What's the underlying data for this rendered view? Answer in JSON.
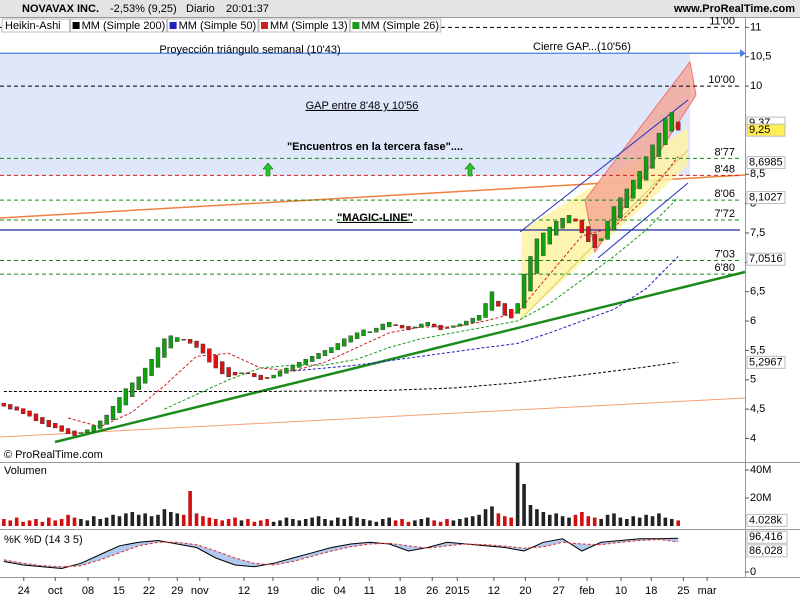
{
  "chart_data": [
    {
      "type": "candlestick",
      "title": "NOVAVAX INC.",
      "change": "-2,53% (9,25)",
      "period": "Diario",
      "time": "20:01:37",
      "source": "www.ProRealTime.com",
      "copyright": "© ProRealTime.com",
      "candles": {
        "name": "Heikin-Ashi",
        "up_color": "#10a010",
        "down_color": "#e01010",
        "open": [
          4.6,
          4.58,
          4.54,
          4.51,
          4.47,
          4.42,
          4.36,
          4.31,
          4.26,
          4.22,
          4.17,
          4.13,
          4.09,
          4.1,
          4.12,
          4.17,
          4.24,
          4.32,
          4.44,
          4.57,
          4.71,
          4.83,
          4.94,
          5.07,
          5.21,
          5.38,
          5.54,
          5.65,
          5.69,
          5.69,
          5.66,
          5.61,
          5.53,
          5.42,
          5.31,
          5.21,
          5.13,
          5.11,
          5.12,
          5.11,
          5.08,
          5.04,
          5.03,
          5.06,
          5.11,
          5.16,
          5.21,
          5.26,
          5.31,
          5.36,
          5.41,
          5.46,
          5.51,
          5.57,
          5.64,
          5.7,
          5.75,
          5.8,
          5.81,
          5.85,
          5.9,
          5.94,
          5.93,
          5.91,
          5.88,
          5.89,
          5.92,
          5.95,
          5.93,
          5.89,
          5.89,
          5.91,
          5.93,
          5.97,
          6.01,
          6.06,
          6.18,
          6.34,
          6.3,
          6.2,
          6.13,
          6.22,
          6.51,
          6.81,
          7.11,
          7.31,
          7.46,
          7.58,
          7.67,
          7.74,
          7.72,
          7.61,
          7.48,
          7.37,
          7.39,
          7.55,
          7.75,
          7.93,
          8.09,
          8.25,
          8.4,
          8.6,
          8.8,
          9.0,
          9.23,
          9.39
        ],
        "close": [
          4.55,
          4.5,
          4.48,
          4.42,
          4.38,
          4.3,
          4.25,
          4.2,
          4.18,
          4.12,
          4.08,
          4.05,
          4.1,
          4.15,
          4.22,
          4.3,
          4.4,
          4.55,
          4.7,
          4.85,
          4.95,
          5.05,
          5.2,
          5.35,
          5.55,
          5.7,
          5.75,
          5.72,
          5.68,
          5.62,
          5.55,
          5.45,
          5.3,
          5.2,
          5.1,
          5.05,
          5.08,
          5.12,
          5.1,
          5.05,
          5.0,
          5.02,
          5.08,
          5.15,
          5.2,
          5.25,
          5.3,
          5.35,
          5.4,
          5.45,
          5.5,
          5.55,
          5.62,
          5.7,
          5.75,
          5.8,
          5.85,
          5.82,
          5.88,
          5.95,
          5.98,
          5.92,
          5.88,
          5.85,
          5.9,
          5.95,
          5.98,
          5.9,
          5.85,
          5.88,
          5.92,
          5.95,
          6.0,
          6.05,
          6.1,
          6.3,
          6.5,
          6.25,
          6.1,
          6.05,
          6.3,
          6.8,
          7.1,
          7.4,
          7.5,
          7.6,
          7.7,
          7.75,
          7.8,
          7.7,
          7.5,
          7.35,
          7.25,
          7.4,
          7.7,
          7.95,
          8.1,
          8.25,
          8.4,
          8.55,
          8.8,
          9.0,
          9.2,
          9.45,
          9.55,
          9.25
        ]
      },
      "series": [
        {
          "name": "MM (Simple 200)",
          "color": "#000000",
          "x": [
            0,
            40,
            60,
            70,
            80,
            90,
            100,
            105
          ],
          "values": [
            4.8,
            4.8,
            4.82,
            4.86,
            4.95,
            5.08,
            5.22,
            5.3
          ]
        },
        {
          "name": "MM (Simple 50)",
          "color": "#2020c0",
          "x": [
            45,
            55,
            65,
            75,
            80,
            85,
            90,
            95,
            100,
            105
          ],
          "values": [
            5.15,
            5.25,
            5.4,
            5.55,
            5.62,
            5.8,
            6.0,
            6.2,
            6.55,
            7.1
          ]
        },
        {
          "name": "MM (Simple 13)",
          "color": "#d02020",
          "x": [
            10,
            15,
            20,
            25,
            30,
            35,
            40,
            45,
            50,
            55,
            60,
            65,
            70,
            75,
            80,
            85,
            90,
            95,
            100,
            105
          ],
          "values": [
            4.35,
            4.2,
            4.45,
            4.9,
            5.4,
            5.45,
            5.2,
            5.15,
            5.3,
            5.55,
            5.8,
            5.9,
            5.9,
            6.0,
            6.15,
            6.8,
            7.45,
            7.6,
            8.1,
            8.8
          ]
        },
        {
          "name": "MM (Simple 26)",
          "color": "#1a9a1a",
          "x": [
            25,
            30,
            35,
            40,
            45,
            50,
            55,
            60,
            65,
            70,
            75,
            80,
            85,
            90,
            95,
            100,
            105
          ],
          "values": [
            4.5,
            4.75,
            5.0,
            5.2,
            5.25,
            5.25,
            5.35,
            5.55,
            5.7,
            5.8,
            5.9,
            6.0,
            6.3,
            6.7,
            7.1,
            7.55,
            8.1
          ]
        }
      ],
      "levels": [
        {
          "value": 11,
          "label": "11'00",
          "color": "#000000",
          "dash": true
        },
        {
          "value": 10.56,
          "color": "#4a7ee8",
          "dash": false
        },
        {
          "value": 10,
          "label": "10'00",
          "color": "#000000",
          "dash": true
        },
        {
          "value": 8.77,
          "label": "8'77",
          "color": "#1a8a1a",
          "dash": true
        },
        {
          "value": 8.48,
          "label": "8'48",
          "color": "#d02020",
          "dash": true
        },
        {
          "value": 8.06,
          "label": "8'06",
          "color": "#1a8a1a",
          "dash": true
        },
        {
          "value": 7.72,
          "label": "7'72",
          "color": "#1a8a1a",
          "dash": true
        },
        {
          "value": 7.55,
          "color": "#1a2a9a",
          "dash": false
        },
        {
          "value": 7.03,
          "label": "7'03",
          "color": "#1a8a1a",
          "dash": true
        },
        {
          "value": 6.8,
          "label": "6'80",
          "color": "#1a8a1a",
          "dash": true
        }
      ],
      "band": {
        "low": 8.48,
        "high": 10.56,
        "color": "#dfe7fb"
      },
      "annotations": [
        "Proyección triángulo semanal (10'43)",
        "Cierre GAP...(10'56)",
        "GAP entre 8'48 y 10'56",
        "\"Encuentros en la tercera fase\"....",
        "\"MAGIC-LINE\""
      ],
      "price_labels": [
        {
          "value": 9.37,
          "label": "9,37",
          "color": "#000000",
          "bg": "#ffffff"
        },
        {
          "value": 9.25,
          "label": "9,25",
          "color": "#000000",
          "bg": "#ffee55"
        },
        {
          "value": 8.6985,
          "label": "8,6985",
          "color": "#d00000",
          "bg": "#ffffff"
        },
        {
          "value": 8.1027,
          "label": "8,1027",
          "color": "#108010",
          "bg": "#ffffff"
        },
        {
          "value": 7.0516,
          "label": "7,0516",
          "color": "#2030c0",
          "bg": "#ffffff"
        },
        {
          "value": 5.2967,
          "label": "5,2967",
          "color": "#000000",
          "bg": "#ffffff"
        }
      ],
      "xlim": [
        -0.6,
        115.4
      ],
      "xticks": [
        {
          "value": 3.1,
          "label": "24"
        },
        {
          "value": 8,
          "label": "oct"
        },
        {
          "value": 13.1,
          "label": "08"
        },
        {
          "value": 17.9,
          "label": "15"
        },
        {
          "value": 22.6,
          "label": "22"
        },
        {
          "value": 27,
          "label": "29"
        },
        {
          "value": 30.5,
          "label": "nov"
        },
        {
          "value": 37.4,
          "label": "12"
        },
        {
          "value": 41.9,
          "label": "19"
        },
        {
          "value": 48.9,
          "label": "dic"
        },
        {
          "value": 52.3,
          "label": "04"
        },
        {
          "value": 56.9,
          "label": "11"
        },
        {
          "value": 61.7,
          "label": "18"
        },
        {
          "value": 66.7,
          "label": "26"
        },
        {
          "value": 70.6,
          "label": "2015"
        },
        {
          "value": 76.3,
          "label": "12"
        },
        {
          "value": 81.2,
          "label": "20"
        },
        {
          "value": 86.4,
          "label": "27"
        },
        {
          "value": 90.8,
          "label": "feb"
        },
        {
          "value": 96.1,
          "label": "10"
        },
        {
          "value": 100.8,
          "label": "18"
        },
        {
          "value": 105.8,
          "label": "25"
        },
        {
          "value": 109.5,
          "label": "mar"
        }
      ],
      "ylim": [
        3.6,
        11.16
      ],
      "yticks": [
        4,
        {
          "value": 4.5,
          "label": "4,5"
        },
        5,
        {
          "value": 5.5,
          "label": "5,5"
        },
        6,
        {
          "value": 6.5,
          "label": "6,5"
        },
        7,
        {
          "value": 7.5,
          "label": "7,5"
        },
        8,
        {
          "value": 8.5,
          "label": "8,5"
        },
        10,
        {
          "value": 10.5,
          "label": "10,5"
        },
        11
      ]
    },
    {
      "type": "bar",
      "title": "Volumen",
      "up_color": "#222222",
      "down_color": "#d01010",
      "values": [
        5,
        4,
        6,
        3,
        4,
        5,
        3,
        6,
        4,
        5,
        8,
        6,
        5,
        4,
        7,
        5,
        6,
        8,
        7,
        9,
        10,
        8,
        9,
        7,
        8,
        12,
        10,
        9,
        8,
        25,
        9,
        7,
        6,
        5,
        4,
        5,
        6,
        4,
        5,
        3,
        4,
        5,
        3,
        4,
        6,
        5,
        4,
        5,
        6,
        7,
        5,
        4,
        6,
        5,
        7,
        6,
        5,
        4,
        3,
        5,
        6,
        4,
        5,
        3,
        4,
        5,
        6,
        4,
        3,
        5,
        4,
        5,
        6,
        7,
        8,
        12,
        14,
        9,
        7,
        6,
        45,
        30,
        15,
        12,
        10,
        8,
        9,
        7,
        6,
        8,
        10,
        7,
        6,
        5,
        8,
        9,
        6,
        5,
        7,
        6,
        8,
        7,
        9,
        6,
        5,
        4
      ],
      "ylim": [
        0,
        45
      ],
      "yticks": [
        {
          "value": 20,
          "label": "20M"
        },
        {
          "value": 40,
          "label": "40M"
        }
      ],
      "value_box": {
        "value": 4.028,
        "label": "4.028k",
        "color": "#d00000"
      }
    },
    {
      "type": "line",
      "title": "%K",
      "series": [
        {
          "name": "%K",
          "color": "#000000",
          "x": [
            0,
            3,
            6,
            9,
            12,
            15,
            18,
            21,
            24,
            27,
            30,
            33,
            36,
            39,
            42,
            45,
            48,
            51,
            54,
            57,
            60,
            63,
            66,
            69,
            72,
            75,
            78,
            81,
            84,
            87,
            90,
            93,
            96,
            99,
            102,
            105
          ],
          "values": [
            30,
            20,
            15,
            10,
            25,
            50,
            75,
            85,
            90,
            80,
            70,
            40,
            20,
            15,
            25,
            40,
            55,
            70,
            80,
            85,
            80,
            60,
            70,
            85,
            80,
            75,
            70,
            60,
            85,
            95,
            60,
            85,
            90,
            95,
            95,
            96.416
          ]
        },
        {
          "name": "%D (14 3 5)",
          "color": "#e03030",
          "x": [
            0,
            3,
            6,
            9,
            12,
            15,
            18,
            21,
            24,
            27,
            30,
            33,
            36,
            39,
            42,
            45,
            48,
            51,
            54,
            57,
            60,
            63,
            66,
            69,
            72,
            75,
            78,
            81,
            84,
            87,
            90,
            93,
            96,
            99,
            102,
            105
          ],
          "values": [
            35,
            25,
            18,
            15,
            18,
            35,
            55,
            75,
            85,
            85,
            78,
            60,
            40,
            25,
            20,
            30,
            45,
            60,
            72,
            80,
            82,
            75,
            68,
            75,
            80,
            78,
            74,
            68,
            72,
            85,
            80,
            78,
            85,
            90,
            93,
            86.028
          ]
        }
      ],
      "ylim": [
        0,
        100
      ],
      "yticks": [
        0
      ],
      "value_boxes": [
        {
          "value": 96.416,
          "label": "96,416"
        },
        {
          "value": 86.028,
          "label": "86,028"
        }
      ]
    }
  ]
}
